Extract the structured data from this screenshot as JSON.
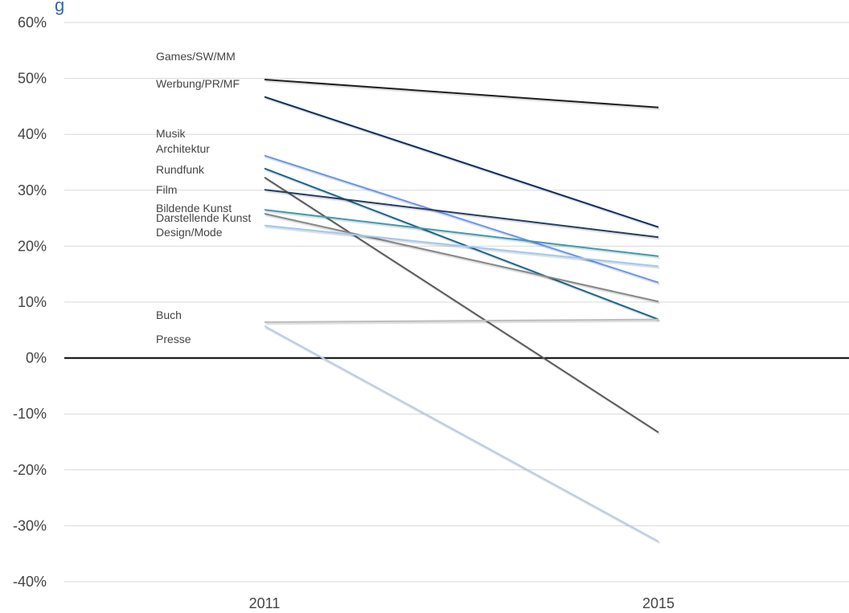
{
  "chart_data": {
    "type": "line",
    "title": "",
    "title_fragment": "g",
    "xlabel": "",
    "ylabel": "",
    "x": [
      "2011",
      "2015"
    ],
    "ylim": [
      -40,
      60
    ],
    "yticks": [
      60,
      50,
      40,
      30,
      20,
      10,
      0,
      -10,
      -20,
      -30,
      -40
    ],
    "ytick_labels": [
      "60%",
      "50%",
      "40%",
      "30%",
      "20%",
      "10%",
      "0%",
      "-10%",
      "-20%",
      "-30%",
      "-40%"
    ],
    "grid": "horizontal",
    "legend": "inline-left",
    "series": [
      {
        "name": "Games/SW/MM",
        "values": [
          49.8,
          44.8
        ],
        "color": "#1f1f1f"
      },
      {
        "name": "Werbung/PR/MF",
        "values": [
          46.7,
          23.4
        ],
        "color": "#0d2b63"
      },
      {
        "name": "Musik",
        "values": [
          32.3,
          -13.3
        ],
        "color": "#5a5a5a"
      },
      {
        "name": "Architektur",
        "values": [
          36.2,
          13.5
        ],
        "color": "#6696f0"
      },
      {
        "name": "Rundfunk",
        "values": [
          33.9,
          6.9
        ],
        "color": "#17658f"
      },
      {
        "name": "Film",
        "values": [
          30.1,
          21.6
        ],
        "color": "#253d66"
      },
      {
        "name": "Bildende Kunst",
        "values": [
          26.5,
          18.2
        ],
        "color": "#3d9bb0"
      },
      {
        "name": "Darstellende Kunst",
        "values": [
          25.8,
          10.1
        ],
        "color": "#868686"
      },
      {
        "name": "Design/Mode",
        "values": [
          23.7,
          16.4
        ],
        "color": "#9ec9f2"
      },
      {
        "name": "Buch",
        "values": [
          6.4,
          6.9
        ],
        "color": "#bdbdbd"
      },
      {
        "name": "Presse",
        "values": [
          5.7,
          -32.8
        ],
        "color": "#b8cde6"
      }
    ]
  }
}
